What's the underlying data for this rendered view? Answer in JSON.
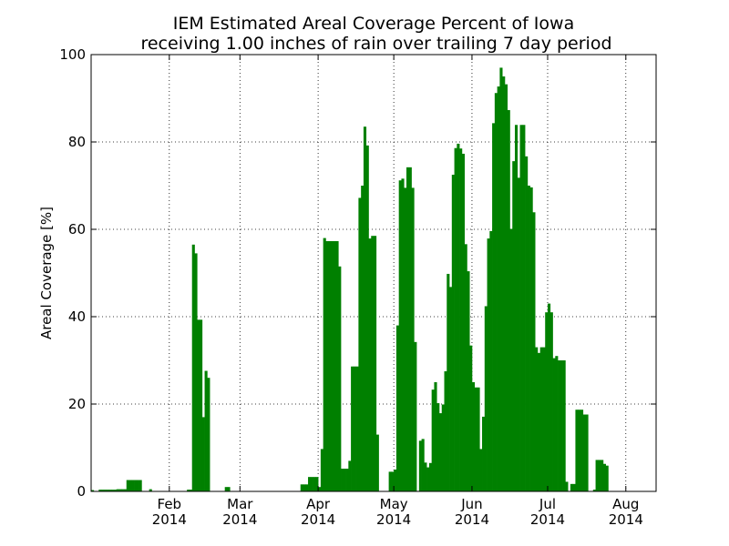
{
  "chart_data": {
    "type": "bar",
    "title": "IEM Estimated Areal Coverage Percent of Iowa",
    "subtitle": "receiving 1.00 inches of rain over trailing 7 day period",
    "ylabel": "Areal Coverage [%]",
    "xlabel": "",
    "ylim": [
      0,
      100
    ],
    "xlim": [
      "2014-01-01",
      "2014-08-13"
    ],
    "grid": true,
    "color": "#008000",
    "yticks": [
      0,
      20,
      40,
      60,
      80,
      100
    ],
    "xticks": [
      {
        "date": "2014-02-01",
        "label": "Feb",
        "year": "2014"
      },
      {
        "date": "2014-03-01",
        "label": "Mar",
        "year": "2014"
      },
      {
        "date": "2014-04-01",
        "label": "Apr",
        "year": "2014"
      },
      {
        "date": "2014-05-01",
        "label": "May",
        "year": "2014"
      },
      {
        "date": "2014-06-01",
        "label": "Jun",
        "year": "2014"
      },
      {
        "date": "2014-07-01",
        "label": "Jul",
        "year": "2014"
      },
      {
        "date": "2014-08-01",
        "label": "Aug",
        "year": "2014"
      }
    ],
    "series": [
      {
        "start_date": "2014-01-01",
        "values": [
          0.3,
          0,
          0,
          0.4,
          0.4,
          0.4,
          0.4,
          0.4,
          0.4,
          0.4,
          0.5,
          0.5,
          0.5,
          0.5,
          2.6,
          2.6,
          2.6,
          2.6,
          2.6,
          2.6,
          0,
          0,
          0,
          0.5,
          0,
          0,
          0,
          0,
          0,
          0,
          0,
          0,
          0,
          0,
          0,
          0,
          0,
          0,
          0.4,
          0.4,
          56.5,
          54.5,
          39.3,
          39.3,
          17.0,
          27.6,
          26.0,
          0,
          0,
          0,
          0,
          0,
          0,
          1.0,
          1.0,
          0,
          0,
          0,
          0,
          0,
          0,
          0,
          0,
          0,
          0,
          0,
          0,
          0,
          0,
          0,
          0,
          0,
          0,
          0,
          0,
          0,
          0,
          0,
          0,
          0,
          0,
          0,
          0,
          1.6,
          1.6,
          1.6,
          3.3,
          3.3,
          3.3,
          3.3,
          1.0,
          9.7,
          58.0,
          57.3,
          57.3,
          57.3,
          57.3,
          57.3,
          51.5,
          5.2,
          5.2,
          5.2,
          7.0,
          28.6,
          28.6,
          28.6,
          67.2,
          70.0,
          83.5,
          79.2,
          57.9,
          58.5,
          58.5,
          13.0,
          0,
          0,
          0,
          0,
          4.5,
          4.5,
          5.0,
          38.0,
          71.2,
          71.6,
          69.5,
          74.2,
          74.2,
          69.5,
          34.2,
          0,
          11.6,
          12.0,
          6.6,
          5.5,
          6.5,
          23.3,
          25.0,
          20.2,
          17.9,
          19.9,
          27.5,
          49.8,
          46.8,
          72.5,
          78.6,
          79.6,
          78.5,
          77.3,
          56.6,
          50.4,
          33.4,
          25.0,
          23.8,
          23.8,
          9.7,
          17.1,
          42.4,
          57.9,
          59.6,
          84.3,
          91.2,
          92.7,
          97.0,
          95.0,
          93.2,
          87.3,
          60.1,
          75.6,
          83.9,
          71.8,
          83.9,
          83.9,
          76.7,
          70.0,
          69.6,
          63.9,
          33.0,
          31.7,
          33.0,
          33.0,
          41.0,
          43.0,
          41.0,
          30.5,
          31.0,
          30.0,
          30.0,
          30.0,
          2.2,
          0,
          1.7,
          1.7,
          18.7,
          18.7,
          18.7,
          17.6,
          17.6,
          0,
          0,
          0.4,
          7.2,
          7.2,
          7.2,
          6.3,
          5.9
        ]
      }
    ]
  }
}
